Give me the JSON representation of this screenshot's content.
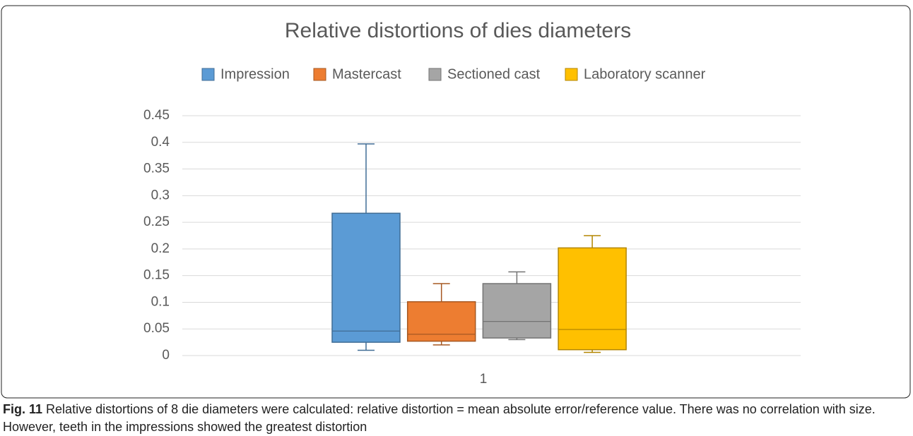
{
  "chart_data": {
    "type": "box",
    "title": "Relative distortions of dies diameters",
    "categories": [
      "1"
    ],
    "series": [
      {
        "name": "Impression",
        "color": "#5b9bd5",
        "values": {
          "min": 0.01,
          "q1": 0.025,
          "median": 0.046,
          "q3": 0.267,
          "max": 0.397
        }
      },
      {
        "name": "Mastercast",
        "color": "#ed7d31",
        "values": {
          "min": 0.02,
          "q1": 0.027,
          "median": 0.04,
          "q3": 0.101,
          "max": 0.135
        }
      },
      {
        "name": "Sectioned cast",
        "color": "#a5a5a5",
        "values": {
          "min": 0.03,
          "q1": 0.033,
          "median": 0.064,
          "q3": 0.135,
          "max": 0.157
        }
      },
      {
        "name": "Laboratory scanner",
        "color": "#ffc000",
        "values": {
          "min": 0.006,
          "q1": 0.011,
          "median": 0.049,
          "q3": 0.202,
          "max": 0.225
        }
      }
    ],
    "ylim": [
      0,
      0.45
    ],
    "yticks": [
      0,
      0.05,
      0.1,
      0.15,
      0.2,
      0.25,
      0.3,
      0.35,
      0.4,
      0.45
    ],
    "grid": true,
    "legend": "top"
  },
  "caption": {
    "label": "Fig. 11",
    "text": "Relative distortions of 8 die diameters were calculated: relative distortion = mean absolute error/reference value. There was no correlation with size. However, teeth in the impressions showed the greatest distortion"
  }
}
